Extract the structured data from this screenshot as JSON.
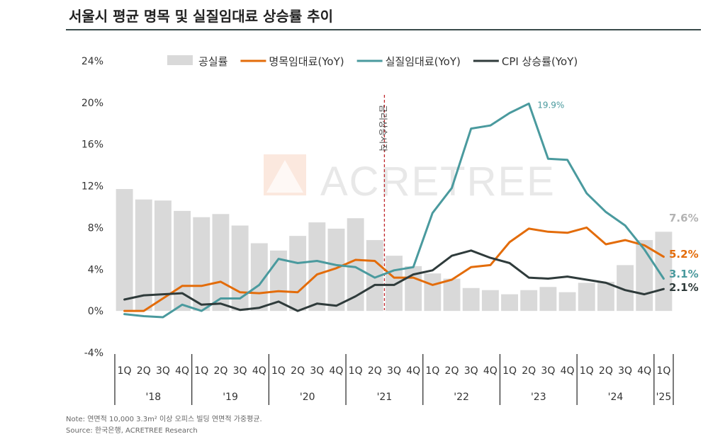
{
  "title": "서울시 평균 명목 및 실질임대료 상승률 추이",
  "notes": {
    "note": "Note: 연면적 10,000 3.3m² 이상  오피스 빌딩 연면적 가중평균.",
    "source": "Source: 한국은행, ACRETREE Research"
  },
  "watermark": "ACRETREE",
  "chart_data": {
    "type": "bar+line",
    "ylim": [
      -4,
      24
    ],
    "yticks": [
      "24%",
      "20%",
      "16%",
      "12%",
      "8%",
      "4%",
      "0%",
      "-4%"
    ],
    "ytick_values": [
      24,
      20,
      16,
      12,
      8,
      4,
      0,
      -4
    ],
    "quarters": [
      "1Q",
      "2Q",
      "3Q",
      "4Q",
      "1Q",
      "2Q",
      "3Q",
      "4Q",
      "1Q",
      "2Q",
      "3Q",
      "4Q",
      "1Q",
      "2Q",
      "3Q",
      "4Q",
      "1Q",
      "2Q",
      "3Q",
      "4Q",
      "1Q",
      "2Q",
      "3Q",
      "4Q",
      "1Q",
      "2Q",
      "3Q",
      "4Q",
      "1Q"
    ],
    "years": [
      {
        "label": "'18",
        "start": 0,
        "end": 3
      },
      {
        "label": "'19",
        "start": 4,
        "end": 7
      },
      {
        "label": "'20",
        "start": 8,
        "end": 11
      },
      {
        "label": "'21",
        "start": 12,
        "end": 15
      },
      {
        "label": "'22",
        "start": 16,
        "end": 19
      },
      {
        "label": "'23",
        "start": 20,
        "end": 23
      },
      {
        "label": "'24",
        "start": 24,
        "end": 27
      },
      {
        "label": "'25",
        "start": 28,
        "end": 28
      }
    ],
    "series": [
      {
        "name": "공실률",
        "kind": "bar",
        "color": "#d9d9d9",
        "values": [
          11.7,
          10.7,
          10.6,
          9.6,
          9.0,
          9.3,
          8.2,
          6.5,
          5.8,
          7.2,
          8.5,
          7.9,
          8.9,
          6.8,
          5.3,
          4.3,
          3.6,
          3.1,
          2.2,
          2.0,
          1.6,
          2.0,
          2.3,
          1.8,
          2.7,
          2.8,
          4.4,
          6.8,
          7.6
        ]
      },
      {
        "name": "명목임대료(YoY)",
        "kind": "line",
        "color": "#e36c0a",
        "values": [
          0.0,
          0.0,
          1.2,
          2.4,
          2.4,
          2.8,
          1.8,
          1.7,
          1.9,
          1.8,
          3.5,
          4.1,
          4.9,
          4.8,
          3.2,
          3.2,
          2.5,
          3.0,
          4.2,
          4.4,
          6.6,
          7.9,
          7.6,
          7.5,
          8.0,
          6.4,
          6.8,
          6.3,
          5.2
        ]
      },
      {
        "name": "실질임대료(YoY)",
        "kind": "line",
        "color": "#4a9a9e",
        "values": [
          -0.3,
          -0.5,
          -0.6,
          0.6,
          0.0,
          1.2,
          1.2,
          2.5,
          5.0,
          4.6,
          4.8,
          4.4,
          4.2,
          3.2,
          3.9,
          4.2,
          9.4,
          11.8,
          17.5,
          17.8,
          19.0,
          19.9,
          14.6,
          14.5,
          11.3,
          9.5,
          8.2,
          5.9,
          3.1
        ]
      },
      {
        "name": "CPI 상승률(YoY)",
        "kind": "line",
        "color": "#2f3b3b",
        "values": [
          1.1,
          1.5,
          1.6,
          1.7,
          0.6,
          0.7,
          0.1,
          0.3,
          0.9,
          0.0,
          0.7,
          0.5,
          1.4,
          2.5,
          2.5,
          3.5,
          3.9,
          5.3,
          5.8,
          5.1,
          4.6,
          3.2,
          3.1,
          3.3,
          3.0,
          2.7,
          2.0,
          1.6,
          2.1
        ]
      }
    ],
    "annotations": {
      "event_label": "금리상승시작",
      "event_index": 13.5,
      "peak_label": "19.9%",
      "peak_index": 21,
      "end_labels": [
        {
          "text": "7.6%",
          "series": "공실률",
          "color": "#b3b3b3"
        },
        {
          "text": "5.2%",
          "series": "명목임대료(YoY)",
          "color": "#e36c0a"
        },
        {
          "text": "3.1%",
          "series": "실질임대료(YoY)",
          "color": "#4a9a9e"
        },
        {
          "text": "2.1%",
          "series": "CPI 상승률(YoY)",
          "color": "#2f3b3b"
        }
      ]
    },
    "legend_position": "top",
    "grid": false
  }
}
